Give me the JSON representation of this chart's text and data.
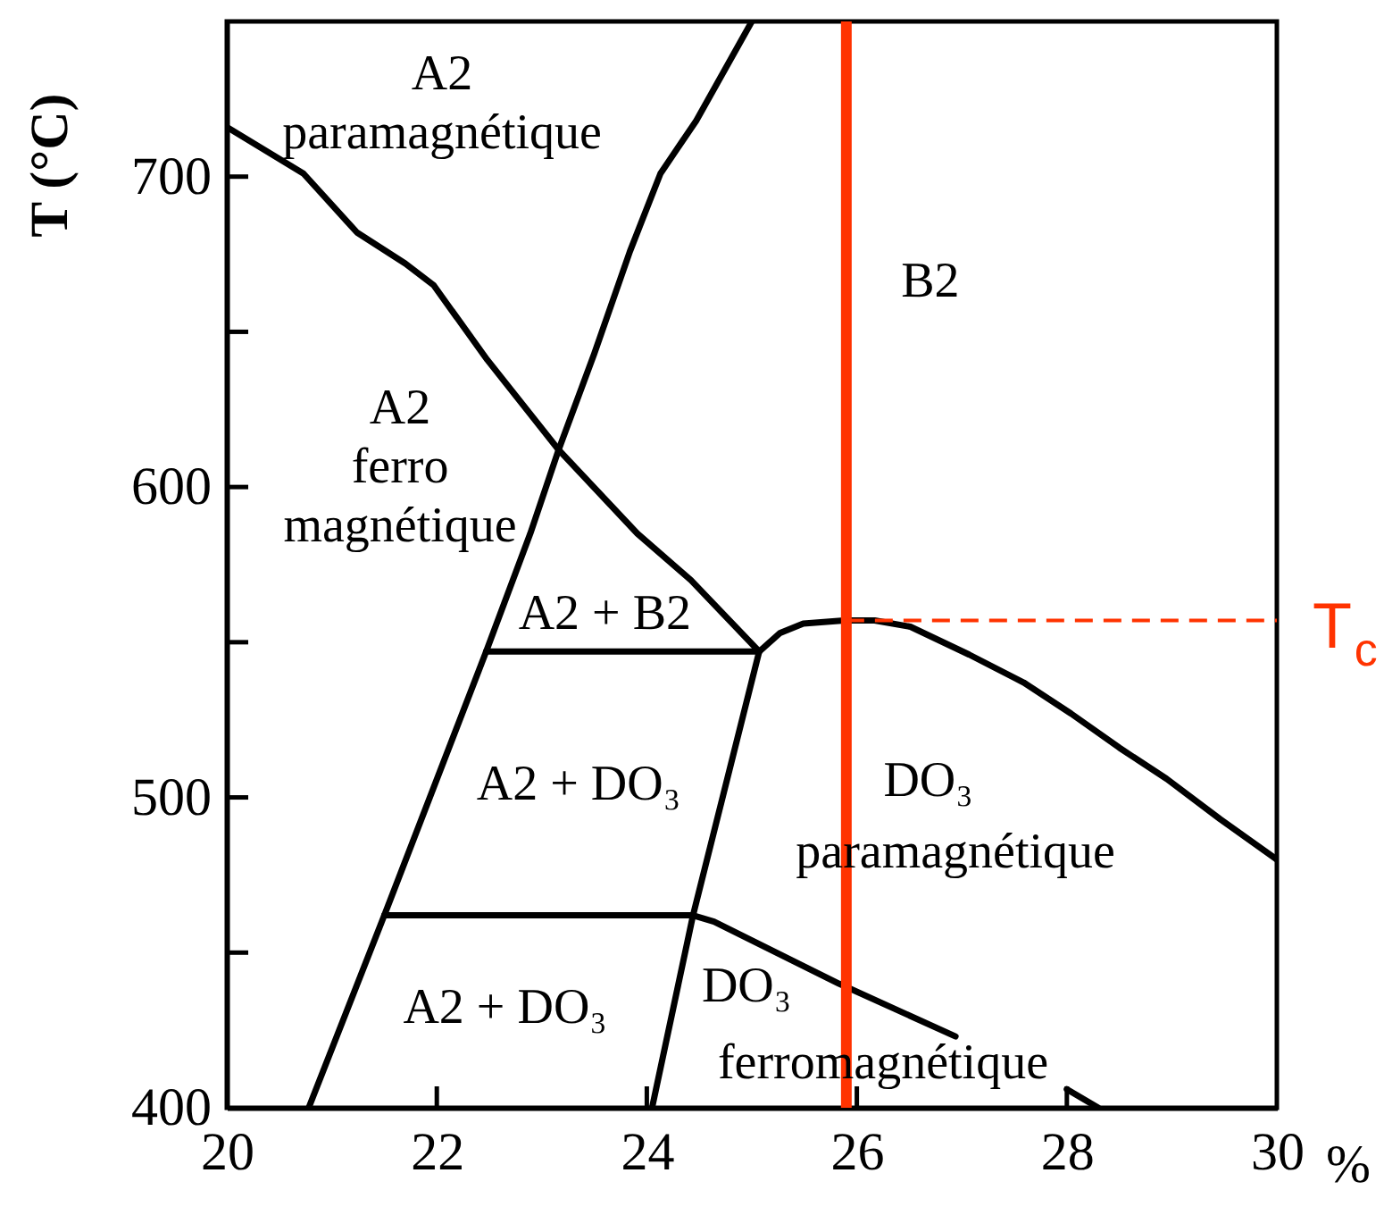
{
  "chart_data": {
    "type": "line",
    "xlabel": "%",
    "ylabel": "T (°C)",
    "xlim": [
      20,
      30
    ],
    "ylim": [
      400,
      750
    ],
    "xticks": [
      20,
      22,
      24,
      26,
      28,
      30
    ],
    "yticks": [
      400,
      {
        "value": 450,
        "label": null
      },
      500,
      {
        "value": 550,
        "label": null
      },
      600,
      {
        "value": 650,
        "label": null
      },
      700
    ],
    "line_style": "solid",
    "series": [
      {
        "color": "#000000",
        "x": [
          20.0,
          20.73,
          21.24,
          21.7,
          21.97,
          22.48,
          23.16,
          23.91,
          24.42,
          25.07
        ],
        "values": [
          716,
          701,
          682,
          672,
          665,
          641,
          612,
          585,
          570,
          547
        ]
      },
      {
        "color": "#000000",
        "x": [
          20.78,
          21.5,
          22.47,
          22.89,
          23.16,
          23.5,
          23.84,
          24.13,
          24.47,
          25.0
        ],
        "values": [
          400,
          462,
          547,
          585,
          612,
          643,
          676,
          701,
          718,
          750
        ]
      },
      {
        "color": "#000000",
        "x": [
          25.07,
          24.44,
          24.05
        ],
        "values": [
          547,
          462,
          400
        ]
      },
      {
        "color": "#000000",
        "x": [
          22.47,
          25.07
        ],
        "values": [
          547,
          547
        ]
      },
      {
        "color": "#000000",
        "x": [
          21.5,
          24.44,
          24.64,
          25.83,
          26.94
        ],
        "values": [
          462,
          462,
          460,
          440,
          423
        ]
      },
      {
        "color": "#000000",
        "x": [
          25.07,
          25.27,
          25.49,
          25.88,
          26.17,
          26.51,
          27.07,
          27.59,
          28.04,
          28.5,
          28.95,
          29.46,
          30.0
        ],
        "values": [
          547,
          553,
          556,
          557,
          557,
          555,
          546,
          537,
          527,
          516,
          506,
          493,
          480
        ]
      },
      {
        "color": "#000000",
        "x": [
          28.0,
          28.3
        ],
        "values": [
          406,
          400
        ]
      }
    ],
    "ref_lines": [
      {
        "axis": "x",
        "value": 25.9,
        "color": "#ff3300",
        "line_style": "solid"
      },
      {
        "axis": "y",
        "value": 557,
        "label": "T$_{c}$",
        "color": "#ff3300",
        "line_style": "dashed"
      }
    ],
    "annotations": [
      "A2\nparamagnétique",
      "A2\nferro\nmagnétique",
      "A2 + B2",
      "A2 + DO₃",
      "A2 + DO₃",
      "DO₃",
      "ferromagnétique",
      "DO₃",
      "paramagnétique",
      "B2"
    ]
  }
}
